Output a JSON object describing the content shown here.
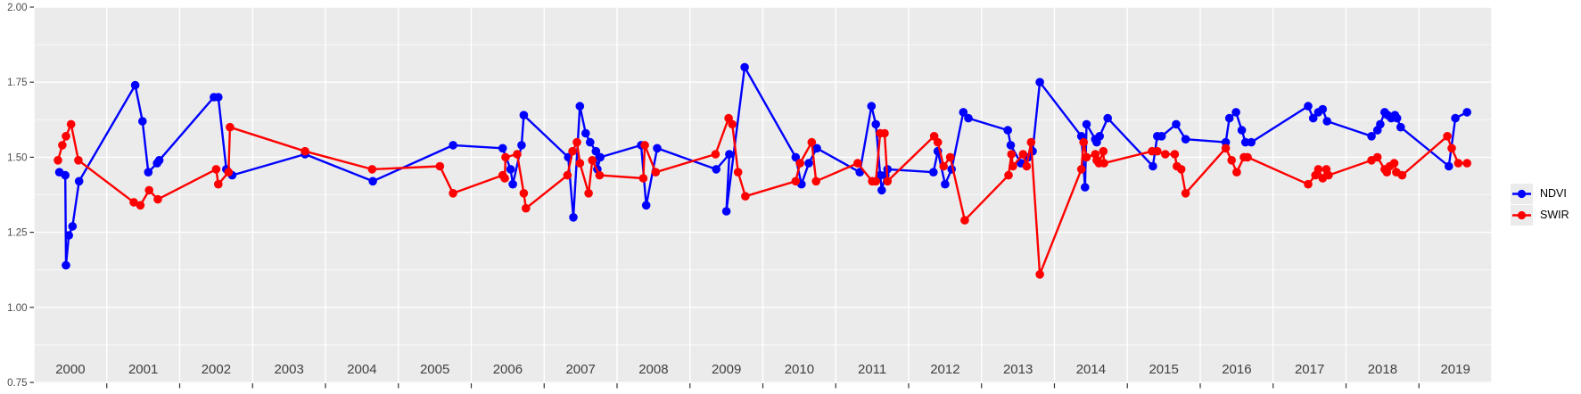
{
  "figure": {
    "background": "#FFFFFF",
    "panel_background": "#EBEBEB",
    "grid_major_color": "#FFFFFF",
    "grid_minor_color": "#FFFFFF",
    "axis_text_color_y": "#4D4D4D",
    "axis_text_color_x": "#404040",
    "tick_color": "#333333"
  },
  "legend": {
    "items": [
      {
        "label": "NDVI",
        "color": "#0000FF"
      },
      {
        "label": "SWIR",
        "color": "#FF0000"
      }
    ]
  },
  "chart_data": {
    "type": "line",
    "title": "",
    "xlabel": "",
    "ylabel": "",
    "xlim": [
      2000,
      2020
    ],
    "ylim": [
      0.75,
      2.0
    ],
    "x_tick_labels": [
      "2000",
      "2001",
      "2002",
      "2003",
      "2004",
      "2005",
      "2006",
      "2007",
      "2008",
      "2009",
      "2010",
      "2011",
      "2012",
      "2013",
      "2014",
      "2015",
      "2016",
      "2017",
      "2018",
      "2019"
    ],
    "y_tick_labels": [
      "0.75",
      "1.00",
      "1.25",
      "1.50",
      "1.75",
      "2.00"
    ],
    "y_ticks": [
      0.75,
      1.0,
      1.25,
      1.5,
      1.75,
      2.0
    ],
    "y_minor_ticks": [
      0.875,
      1.125,
      1.375,
      1.625,
      1.875
    ],
    "grid": "major-and-minor",
    "legend_position": "right",
    "marker_radius": 4.8,
    "line_width": 2.4,
    "series": [
      {
        "name": "NDVI",
        "color": "#0000FF",
        "points": [
          [
            2000.35,
            1.45
          ],
          [
            2000.43,
            1.44
          ],
          [
            2000.44,
            1.14
          ],
          [
            2000.48,
            1.24
          ],
          [
            2000.53,
            1.27
          ],
          [
            2000.62,
            1.42
          ],
          [
            2001.39,
            1.74
          ],
          [
            2001.49,
            1.62
          ],
          [
            2001.57,
            1.45
          ],
          [
            2001.69,
            1.48
          ],
          [
            2001.72,
            1.49
          ],
          [
            2002.47,
            1.7
          ],
          [
            2002.53,
            1.7
          ],
          [
            2002.64,
            1.46
          ],
          [
            2002.72,
            1.44
          ],
          [
            2003.72,
            1.51
          ],
          [
            2004.65,
            1.42
          ],
          [
            2005.75,
            1.54
          ],
          [
            2006.43,
            1.53
          ],
          [
            2006.54,
            1.46
          ],
          [
            2006.57,
            1.41
          ],
          [
            2006.69,
            1.54
          ],
          [
            2006.72,
            1.64
          ],
          [
            2007.33,
            1.5
          ],
          [
            2007.4,
            1.3
          ],
          [
            2007.49,
            1.67
          ],
          [
            2007.57,
            1.58
          ],
          [
            2007.63,
            1.55
          ],
          [
            2007.71,
            1.52
          ],
          [
            2007.73,
            1.46
          ],
          [
            2007.77,
            1.5
          ],
          [
            2008.33,
            1.54
          ],
          [
            2008.4,
            1.34
          ],
          [
            2008.55,
            1.53
          ],
          [
            2009.36,
            1.46
          ],
          [
            2009.54,
            1.51
          ],
          [
            2009.5,
            1.32
          ],
          [
            2009.75,
            1.8
          ],
          [
            2010.45,
            1.5
          ],
          [
            2010.53,
            1.41
          ],
          [
            2010.63,
            1.48
          ],
          [
            2010.74,
            1.53
          ],
          [
            2011.33,
            1.45
          ],
          [
            2011.49,
            1.67
          ],
          [
            2011.55,
            1.61
          ],
          [
            2011.61,
            1.44
          ],
          [
            2011.63,
            1.39
          ],
          [
            2011.68,
            1.44
          ],
          [
            2011.71,
            1.46
          ],
          [
            2012.34,
            1.45
          ],
          [
            2012.4,
            1.52
          ],
          [
            2012.5,
            1.41
          ],
          [
            2012.59,
            1.46
          ],
          [
            2012.75,
            1.65
          ],
          [
            2012.82,
            1.63
          ],
          [
            2013.36,
            1.59
          ],
          [
            2013.4,
            1.54
          ],
          [
            2013.54,
            1.48
          ],
          [
            2013.64,
            1.5
          ],
          [
            2013.7,
            1.52
          ],
          [
            2013.8,
            1.75
          ],
          [
            2014.37,
            1.57
          ],
          [
            2014.42,
            1.4
          ],
          [
            2014.44,
            1.61
          ],
          [
            2014.56,
            1.56
          ],
          [
            2014.58,
            1.55
          ],
          [
            2014.62,
            1.57
          ],
          [
            2014.73,
            1.63
          ],
          [
            2015.35,
            1.47
          ],
          [
            2015.41,
            1.57
          ],
          [
            2015.47,
            1.57
          ],
          [
            2015.67,
            1.61
          ],
          [
            2015.8,
            1.56
          ],
          [
            2016.35,
            1.55
          ],
          [
            2016.4,
            1.63
          ],
          [
            2016.49,
            1.65
          ],
          [
            2016.57,
            1.59
          ],
          [
            2016.62,
            1.55
          ],
          [
            2016.7,
            1.55
          ],
          [
            2017.48,
            1.67
          ],
          [
            2017.55,
            1.63
          ],
          [
            2017.62,
            1.65
          ],
          [
            2017.68,
            1.66
          ],
          [
            2017.74,
            1.62
          ],
          [
            2018.35,
            1.57
          ],
          [
            2018.43,
            1.59
          ],
          [
            2018.47,
            1.61
          ],
          [
            2018.53,
            1.65
          ],
          [
            2018.57,
            1.64
          ],
          [
            2018.62,
            1.63
          ],
          [
            2018.67,
            1.64
          ],
          [
            2018.7,
            1.63
          ],
          [
            2018.75,
            1.6
          ],
          [
            2019.41,
            1.47
          ],
          [
            2019.5,
            1.63
          ],
          [
            2019.66,
            1.65
          ]
        ]
      },
      {
        "name": "SWIR",
        "color": "#FF0000",
        "points": [
          [
            2000.33,
            1.49
          ],
          [
            2000.39,
            1.54
          ],
          [
            2000.44,
            1.57
          ],
          [
            2000.51,
            1.61
          ],
          [
            2000.61,
            1.49
          ],
          [
            2001.37,
            1.35
          ],
          [
            2001.46,
            1.34
          ],
          [
            2001.58,
            1.39
          ],
          [
            2001.7,
            1.36
          ],
          [
            2002.5,
            1.46
          ],
          [
            2002.53,
            1.41
          ],
          [
            2002.67,
            1.45
          ],
          [
            2002.69,
            1.6
          ],
          [
            2003.72,
            1.52
          ],
          [
            2004.64,
            1.46
          ],
          [
            2005.57,
            1.47
          ],
          [
            2005.75,
            1.38
          ],
          [
            2006.43,
            1.44
          ],
          [
            2006.46,
            1.43
          ],
          [
            2006.47,
            1.5
          ],
          [
            2006.63,
            1.51
          ],
          [
            2006.72,
            1.38
          ],
          [
            2006.75,
            1.33
          ],
          [
            2007.32,
            1.44
          ],
          [
            2007.39,
            1.52
          ],
          [
            2007.45,
            1.55
          ],
          [
            2007.49,
            1.48
          ],
          [
            2007.61,
            1.38
          ],
          [
            2007.66,
            1.49
          ],
          [
            2007.76,
            1.44
          ],
          [
            2008.36,
            1.43
          ],
          [
            2008.38,
            1.54
          ],
          [
            2008.53,
            1.45
          ],
          [
            2009.35,
            1.51
          ],
          [
            2009.53,
            1.63
          ],
          [
            2009.58,
            1.61
          ],
          [
            2009.66,
            1.45
          ],
          [
            2009.76,
            1.37
          ],
          [
            2010.45,
            1.42
          ],
          [
            2010.51,
            1.48
          ],
          [
            2010.67,
            1.55
          ],
          [
            2010.73,
            1.42
          ],
          [
            2011.3,
            1.48
          ],
          [
            2011.5,
            1.42
          ],
          [
            2011.55,
            1.42
          ],
          [
            2011.61,
            1.58
          ],
          [
            2011.67,
            1.58
          ],
          [
            2011.71,
            1.42
          ],
          [
            2012.35,
            1.57
          ],
          [
            2012.4,
            1.55
          ],
          [
            2012.48,
            1.47
          ],
          [
            2012.57,
            1.5
          ],
          [
            2012.77,
            1.29
          ],
          [
            2013.37,
            1.44
          ],
          [
            2013.41,
            1.51
          ],
          [
            2013.43,
            1.47
          ],
          [
            2013.57,
            1.51
          ],
          [
            2013.62,
            1.47
          ],
          [
            2013.68,
            1.55
          ],
          [
            2013.8,
            1.11
          ],
          [
            2014.37,
            1.46
          ],
          [
            2014.4,
            1.55
          ],
          [
            2014.44,
            1.5
          ],
          [
            2014.56,
            1.51
          ],
          [
            2014.58,
            1.49
          ],
          [
            2014.61,
            1.48
          ],
          [
            2014.67,
            1.52
          ],
          [
            2014.68,
            1.48
          ],
          [
            2015.34,
            1.52
          ],
          [
            2015.41,
            1.52
          ],
          [
            2015.52,
            1.51
          ],
          [
            2015.65,
            1.51
          ],
          [
            2015.68,
            1.47
          ],
          [
            2015.74,
            1.46
          ],
          [
            2015.8,
            1.38
          ],
          [
            2016.35,
            1.53
          ],
          [
            2016.43,
            1.49
          ],
          [
            2016.5,
            1.45
          ],
          [
            2016.6,
            1.5
          ],
          [
            2016.65,
            1.5
          ],
          [
            2017.48,
            1.41
          ],
          [
            2017.58,
            1.44
          ],
          [
            2017.62,
            1.46
          ],
          [
            2017.68,
            1.43
          ],
          [
            2017.73,
            1.46
          ],
          [
            2017.76,
            1.44
          ],
          [
            2018.35,
            1.49
          ],
          [
            2018.43,
            1.5
          ],
          [
            2018.53,
            1.46
          ],
          [
            2018.56,
            1.45
          ],
          [
            2018.6,
            1.47
          ],
          [
            2018.66,
            1.48
          ],
          [
            2018.69,
            1.45
          ],
          [
            2018.77,
            1.44
          ],
          [
            2019.39,
            1.57
          ],
          [
            2019.45,
            1.53
          ],
          [
            2019.54,
            1.48
          ],
          [
            2019.66,
            1.48
          ]
        ]
      }
    ]
  }
}
